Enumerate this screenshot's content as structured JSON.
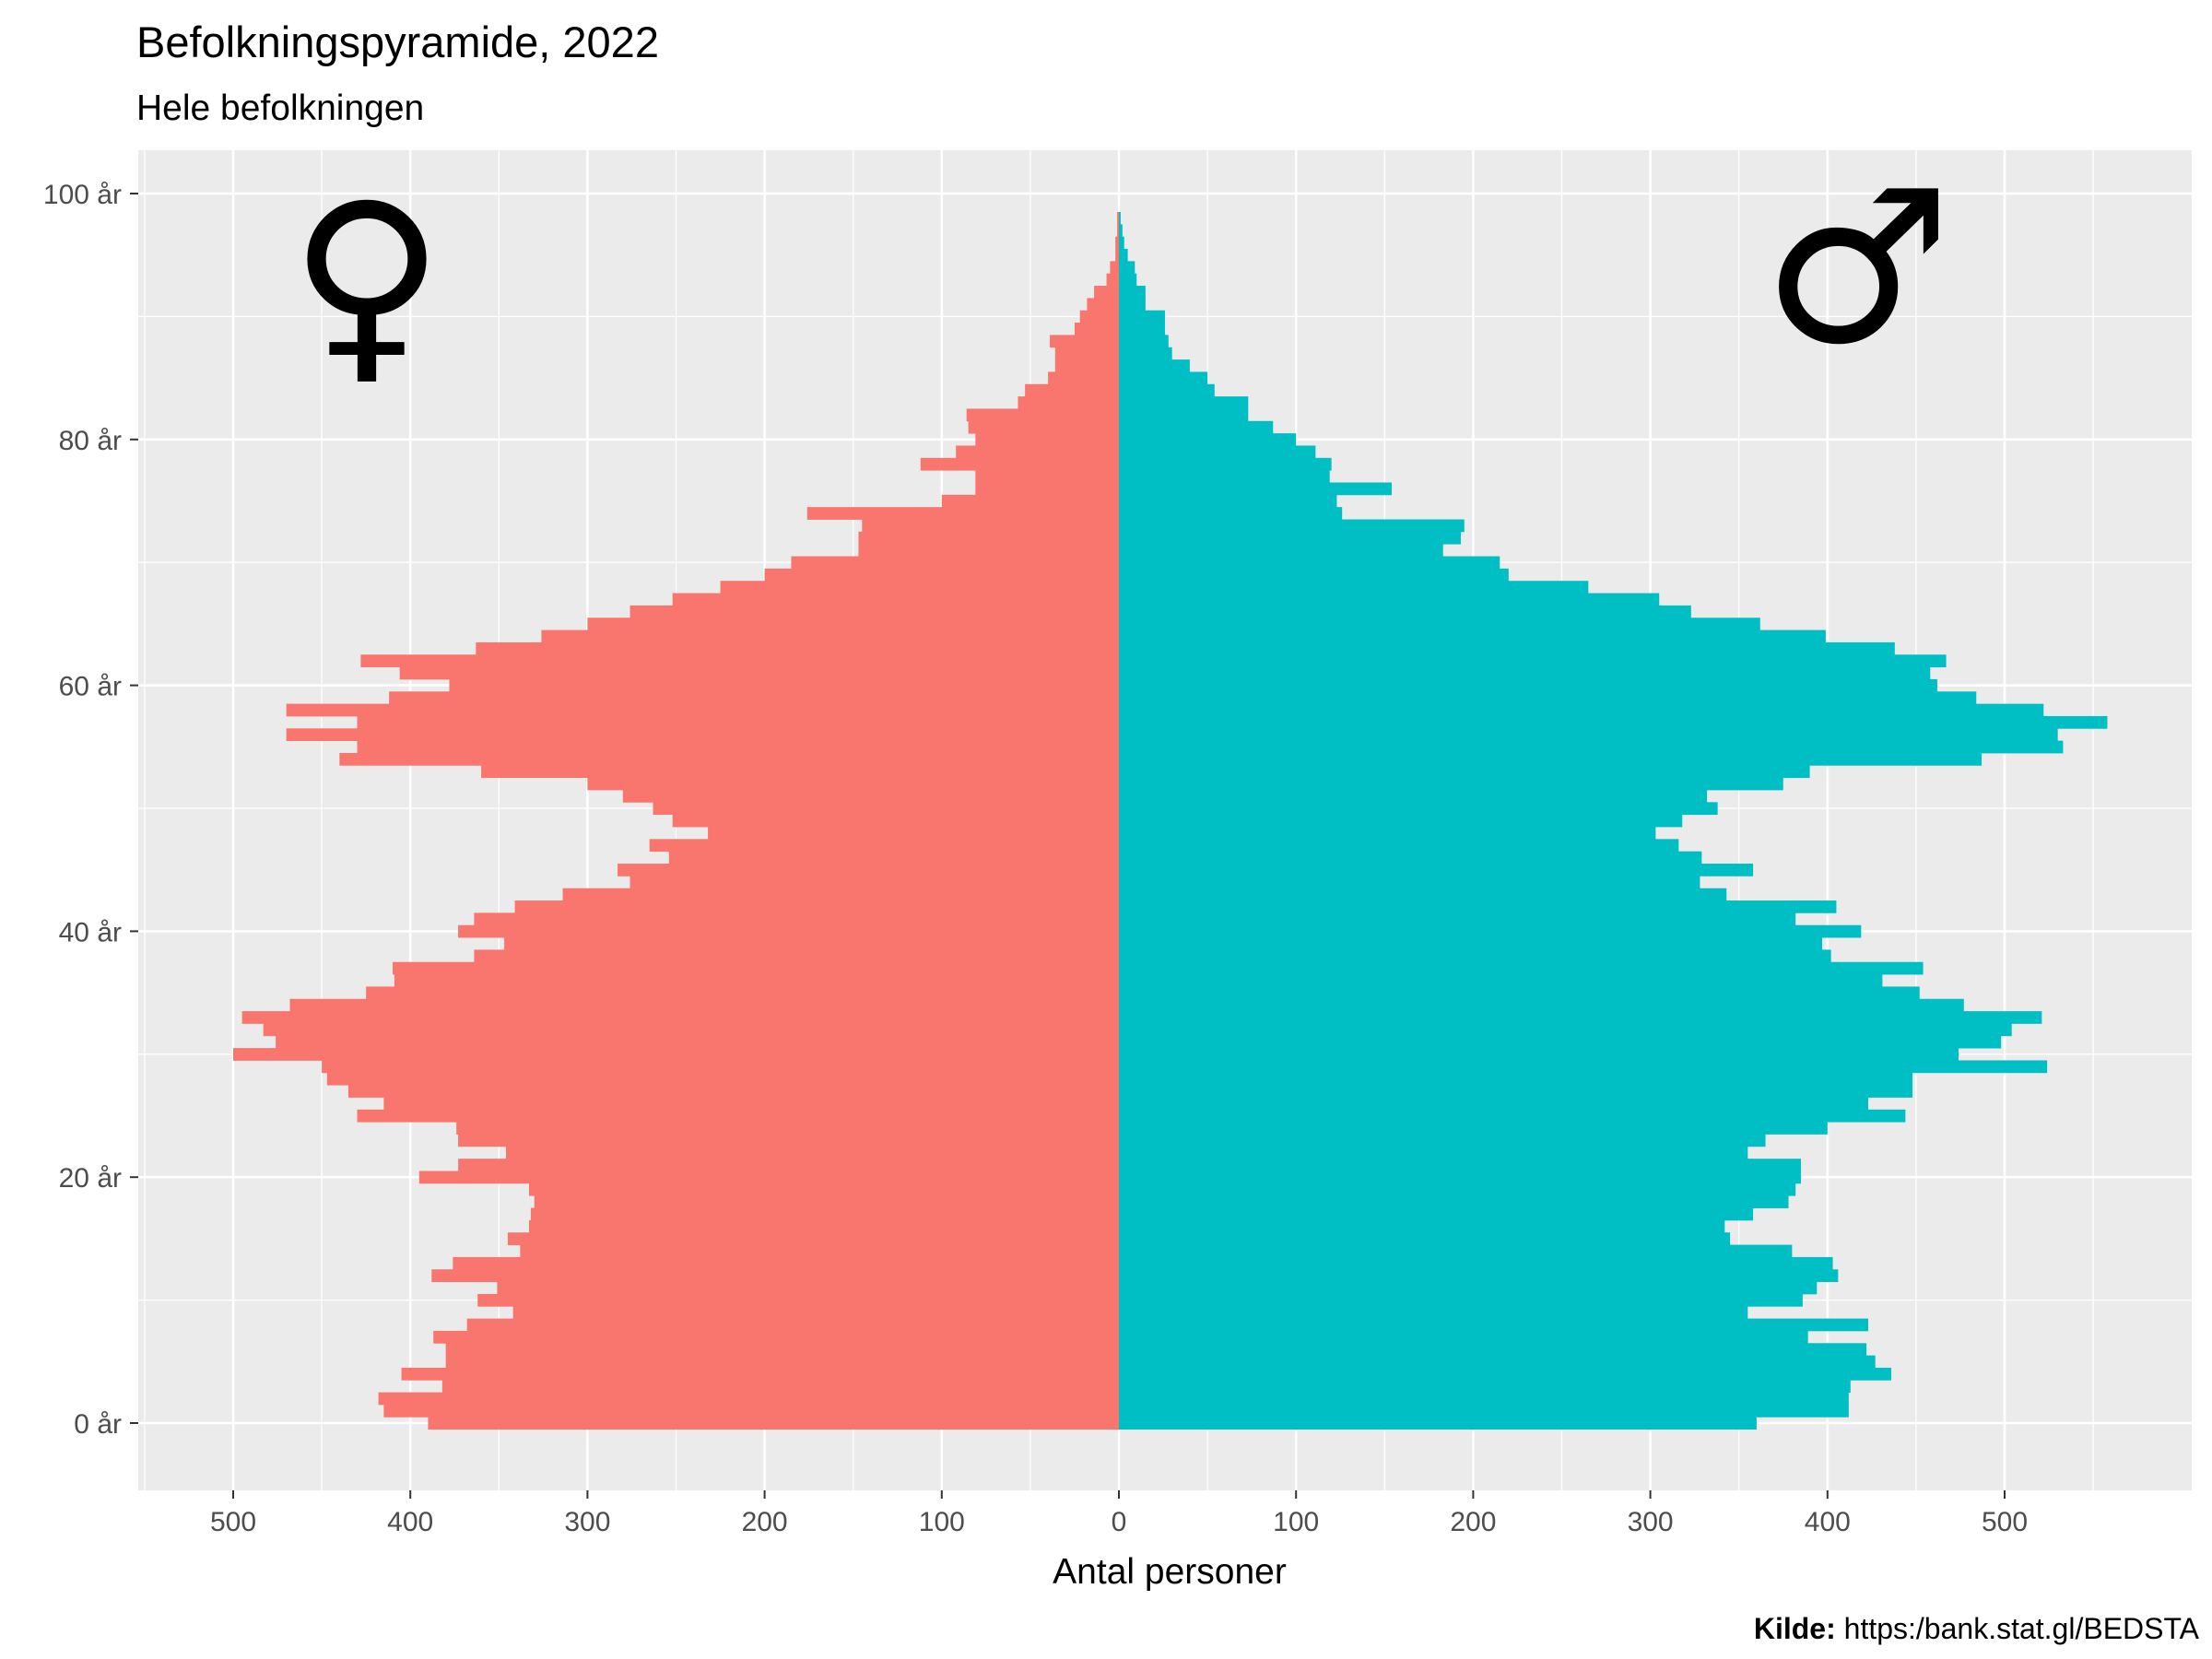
{
  "chart_data": {
    "type": "bar",
    "orientation": "horizontal-population-pyramid",
    "title": "Befolkningspyramide, 2022",
    "subtitle": "Hele befolkningen",
    "xlabel": "Antal personer",
    "ylabel": "",
    "caption_label": "Kilde:",
    "caption_text": " https:/bank.stat.gl/BEDSTA",
    "x_ticks": [
      {
        "value": -500,
        "label": "500"
      },
      {
        "value": -400,
        "label": "400"
      },
      {
        "value": -300,
        "label": "300"
      },
      {
        "value": -200,
        "label": "200"
      },
      {
        "value": -100,
        "label": "100"
      },
      {
        "value": 0,
        "label": "0"
      },
      {
        "value": 100,
        "label": "100"
      },
      {
        "value": 200,
        "label": "200"
      },
      {
        "value": 300,
        "label": "300"
      },
      {
        "value": 400,
        "label": "400"
      },
      {
        "value": 500,
        "label": "500"
      }
    ],
    "y_ticks": [
      {
        "value": 0,
        "label": "0 år"
      },
      {
        "value": 20,
        "label": "20 år"
      },
      {
        "value": 40,
        "label": "40 år"
      },
      {
        "value": 60,
        "label": "60 år"
      },
      {
        "value": 80,
        "label": "80 år"
      },
      {
        "value": 100,
        "label": "100 år"
      }
    ],
    "xlim": [
      -500,
      500
    ],
    "ylim": [
      0,
      100
    ],
    "grid": true,
    "background_color": "#ebebeb",
    "female_symbol": "♀",
    "male_symbol": "♂",
    "series": [
      {
        "name": "Kvinder",
        "side": "left",
        "color": "#f8766d",
        "ages": [
          0,
          1,
          2,
          3,
          4,
          5,
          6,
          7,
          8,
          9,
          10,
          11,
          12,
          13,
          14,
          15,
          16,
          17,
          18,
          19,
          20,
          21,
          22,
          23,
          24,
          25,
          26,
          27,
          28,
          29,
          30,
          31,
          32,
          33,
          34,
          35,
          36,
          37,
          38,
          39,
          40,
          41,
          42,
          43,
          44,
          45,
          46,
          47,
          48,
          49,
          50,
          51,
          52,
          53,
          54,
          55,
          56,
          57,
          58,
          59,
          60,
          61,
          62,
          63,
          64,
          65,
          66,
          67,
          68,
          69,
          70,
          71,
          72,
          73,
          74,
          75,
          76,
          77,
          78,
          79,
          80,
          81,
          82,
          83,
          84,
          85,
          86,
          87,
          88,
          89,
          90,
          91,
          92,
          93,
          94,
          95,
          96,
          97,
          98
        ],
        "values": [
          390,
          415,
          418,
          382,
          405,
          380,
          380,
          387,
          368,
          342,
          362,
          351,
          388,
          376,
          338,
          345,
          333,
          332,
          330,
          333,
          395,
          373,
          346,
          373,
          374,
          430,
          415,
          435,
          447,
          450,
          500,
          476,
          483,
          495,
          468,
          425,
          409,
          410,
          364,
          347,
          373,
          364,
          341,
          314,
          276,
          283,
          254,
          265,
          232,
          252,
          263,
          280,
          300,
          360,
          440,
          430,
          470,
          430,
          470,
          412,
          378,
          406,
          428,
          363,
          326,
          300,
          276,
          252,
          225,
          200,
          185,
          147,
          147,
          145,
          176,
          100,
          81,
          81,
          112,
          92,
          81,
          85,
          86,
          57,
          53,
          40,
          36,
          36,
          39,
          25,
          22,
          18,
          14,
          7,
          5,
          2,
          2,
          1,
          1
        ]
      },
      {
        "name": "Mænd",
        "side": "right",
        "color": "#00bfc4",
        "ages": [
          0,
          1,
          2,
          3,
          4,
          5,
          6,
          7,
          8,
          9,
          10,
          11,
          12,
          13,
          14,
          15,
          16,
          17,
          18,
          19,
          20,
          21,
          22,
          23,
          24,
          25,
          26,
          27,
          28,
          29,
          30,
          31,
          32,
          33,
          34,
          35,
          36,
          37,
          38,
          39,
          40,
          41,
          42,
          43,
          44,
          45,
          46,
          47,
          48,
          49,
          50,
          51,
          52,
          53,
          54,
          55,
          56,
          57,
          58,
          59,
          60,
          61,
          62,
          63,
          64,
          65,
          66,
          67,
          68,
          69,
          70,
          71,
          72,
          73,
          74,
          75,
          76,
          77,
          78,
          79,
          80,
          81,
          82,
          83,
          84,
          85,
          86,
          87,
          88,
          89,
          90,
          91,
          92,
          93,
          94,
          95,
          96,
          97,
          98
        ],
        "values": [
          360,
          412,
          412,
          413,
          436,
          427,
          422,
          389,
          423,
          355,
          386,
          394,
          406,
          403,
          380,
          345,
          342,
          358,
          378,
          382,
          385,
          385,
          355,
          365,
          400,
          444,
          423,
          448,
          448,
          524,
          474,
          498,
          504,
          521,
          477,
          452,
          431,
          454,
          402,
          397,
          419,
          382,
          405,
          343,
          328,
          358,
          329,
          316,
          303,
          318,
          338,
          332,
          375,
          390,
          487,
          533,
          530,
          558,
          522,
          484,
          462,
          458,
          467,
          438,
          399,
          362,
          323,
          305,
          265,
          220,
          215,
          183,
          193,
          195,
          126,
          123,
          154,
          119,
          120,
          111,
          100,
          87,
          73,
          73,
          54,
          50,
          40,
          30,
          28,
          26,
          26,
          15,
          15,
          10,
          9,
          5,
          3,
          2,
          1
        ]
      }
    ]
  }
}
